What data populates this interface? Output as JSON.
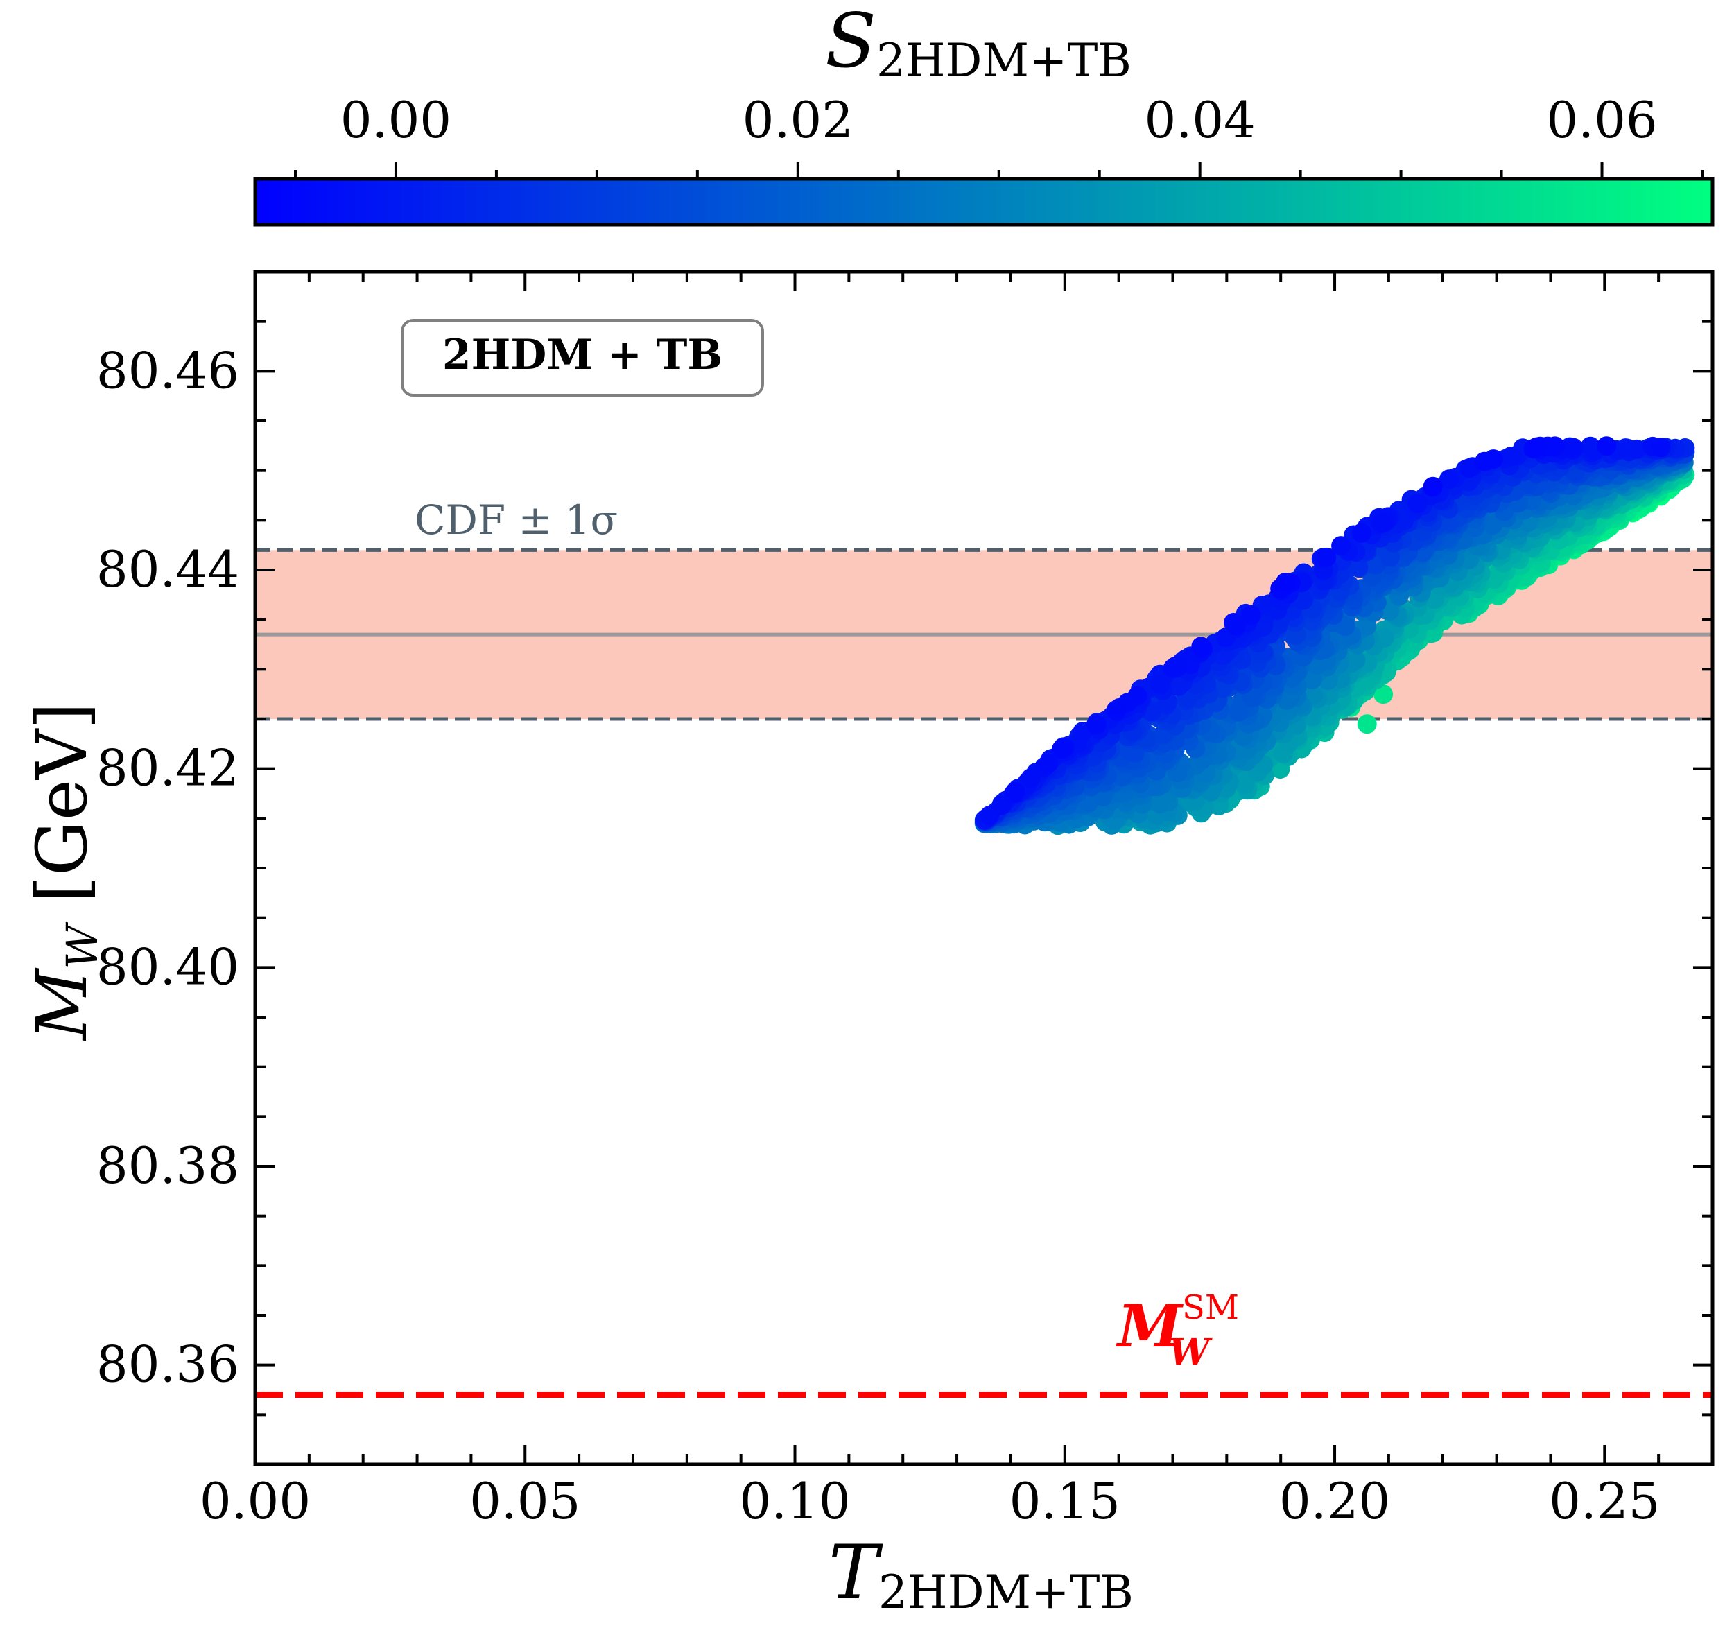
{
  "chart_data": {
    "type": "scatter",
    "title": "",
    "xlabel": {
      "main": "T",
      "sub": "2HDM+TB"
    },
    "ylabel": {
      "main": "M",
      "sub": "W",
      "unit": " [GeV]"
    },
    "xlim": [
      0.0,
      0.27
    ],
    "ylim": [
      80.35,
      80.47
    ],
    "xticks": [
      0.0,
      0.05,
      0.1,
      0.15,
      0.2,
      0.25
    ],
    "xtick_labels": [
      "0.00",
      "0.05",
      "0.10",
      "0.15",
      "0.20",
      "0.25"
    ],
    "yticks": [
      80.36,
      80.38,
      80.4,
      80.42,
      80.44,
      80.46
    ],
    "ytick_labels": [
      "80.36",
      "80.38",
      "80.40",
      "80.42",
      "80.44",
      "80.46"
    ],
    "colorbar": {
      "label": {
        "main": "S",
        "sub": "2HDM+TB"
      },
      "range": [
        -0.007,
        0.0655
      ],
      "ticks": [
        0.0,
        0.02,
        0.04,
        0.06
      ],
      "tick_labels": [
        "0.00",
        "0.02",
        "0.04",
        "0.06"
      ],
      "colormap": "winter",
      "color_low": "#0000ff",
      "color_high": "#00ff80"
    },
    "annotation_box": "2HDM + TB",
    "cdf_band": {
      "label": "CDF ± 1σ",
      "central": 80.4335,
      "lower": 80.425,
      "upper": 80.442,
      "fill_color": "#fcc8bb",
      "line_color": "#4f5f6b",
      "central_color": "#999999"
    },
    "sm_line": {
      "label_main": "M",
      "label_sub": "W",
      "label_sup": "SM",
      "value": 80.357,
      "color": "#ff0000"
    },
    "scatter_region": {
      "description": "dense band of parameter points",
      "upper_edge": [
        [
          0.135,
          80.4148
        ],
        [
          0.15,
          80.4225
        ],
        [
          0.17,
          80.4305
        ],
        [
          0.19,
          80.4385
        ],
        [
          0.21,
          80.446
        ],
        [
          0.225,
          80.4505
        ],
        [
          0.235,
          80.4525
        ],
        [
          0.265,
          80.4525
        ]
      ],
      "lower_edge": [
        [
          0.135,
          80.4145
        ],
        [
          0.145,
          80.4143
        ],
        [
          0.17,
          80.4143
        ],
        [
          0.185,
          80.4175
        ],
        [
          0.2,
          80.4245
        ],
        [
          0.215,
          80.4325
        ],
        [
          0.24,
          80.4405
        ],
        [
          0.265,
          80.449
        ]
      ],
      "outliers": [
        [
          0.181,
          80.4173
        ],
        [
          0.206,
          80.4245
        ],
        [
          0.209,
          80.4275
        ],
        [
          0.242,
          80.4418
        ],
        [
          0.188,
          80.4207
        ],
        [
          0.194,
          80.4222
        ],
        [
          0.203,
          80.4262
        ]
      ]
    }
  }
}
